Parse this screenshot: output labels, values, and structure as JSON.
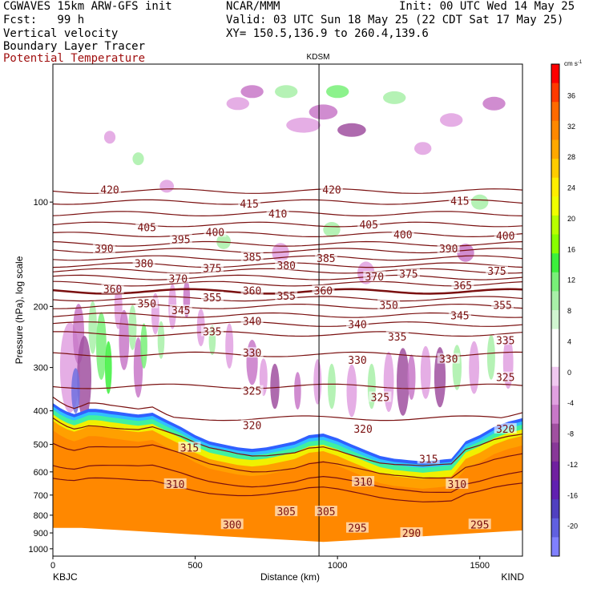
{
  "header": {
    "model": "CGWAVES 15km ARW-GFS init",
    "fcst": "Fcst:   99 h",
    "field1": "Vertical velocity",
    "field2": "Boundary Layer Tracer",
    "field3": "Potential Temperature",
    "center": "NCAR/MMM",
    "init": "Init: 00 UTC Wed 14 May 25",
    "valid": "Valid: 03 UTC Sun 18 May 25 (22 CDT Sat 17 May 25)",
    "xy": "XY= 150.5,136.9 to 260.4,139.6"
  },
  "colors": {
    "contour": "#7a1010",
    "terrain": "#ffffff",
    "header_red": "#a01010"
  },
  "chart_data": {
    "type": "heatmap",
    "xlabel": "Distance (km)",
    "ylabel": "Pressure (hPa), log scale",
    "xlim": [
      0,
      1650
    ],
    "ylim": [
      1050,
      40
    ],
    "x_ticks": [
      0,
      500,
      1000,
      1500
    ],
    "y_ticks": [
      100,
      200,
      300,
      400,
      500,
      600,
      700,
      800,
      900,
      1000
    ],
    "left_station": "KBJC",
    "right_station": "KIND",
    "marker": {
      "label": "KDSM",
      "x": 935
    },
    "colorbar": {
      "unit": "cm s",
      "unit_exp": "-1",
      "tick_labels": [
        36,
        32,
        28,
        24,
        20,
        16,
        12,
        8,
        4,
        0,
        -4,
        -8,
        -12,
        -16,
        -20
      ],
      "colors": [
        "#ff0000",
        "#ff3a00",
        "#ff6a00",
        "#ff8800",
        "#ffa800",
        "#ffcc00",
        "#ffee00",
        "#f0ff00",
        "#b8ff00",
        "#88ff00",
        "#3cf03c",
        "#78f078",
        "#a8f0a8",
        "#d0f5d0",
        "#ffffff",
        "#ffffff",
        "#f0c8f0",
        "#e0a0e0",
        "#c878c8",
        "#a050a0",
        "#883898",
        "#7020a0",
        "#6020b0",
        "#5040c0",
        "#6060e0",
        "#8080ff"
      ]
    },
    "series": [
      {
        "name": "Potential Temperature",
        "values": [
          420,
          415,
          410,
          405,
          400,
          395,
          390,
          385,
          380,
          375,
          370,
          365,
          360,
          355,
          350,
          345,
          340,
          335,
          330,
          325,
          320,
          315,
          310,
          305,
          300,
          295,
          290
        ]
      }
    ],
    "isentropes": [
      {
        "theta": 420,
        "p": 93
      },
      {
        "theta": 415,
        "p": 100
      },
      {
        "theta": 410,
        "p": 108
      },
      {
        "theta": 405,
        "p": 116
      },
      {
        "theta": 400,
        "p": 124
      },
      {
        "theta": 395,
        "p": 132
      },
      {
        "theta": 390,
        "p": 138
      },
      {
        "theta": 385,
        "p": 145
      },
      {
        "theta": 380,
        "p": 152
      },
      {
        "theta": 375,
        "p": 158
      },
      {
        "theta": 370,
        "p": 165
      },
      {
        "theta": 365,
        "p": 172
      },
      {
        "theta": 360,
        "p": 181
      },
      {
        "theta": 355,
        "p": 190
      },
      {
        "theta": 350,
        "p": 200
      },
      {
        "theta": 345,
        "p": 212
      },
      {
        "theta": 340,
        "p": 225
      },
      {
        "theta": 335,
        "p": 240
      },
      {
        "theta": 330,
        "p": 275
      },
      {
        "theta": 325,
        "p": 340
      },
      {
        "theta": 320,
        "p": 420
      }
    ],
    "isentrope_labels": [
      {
        "t": "420",
        "x": 200,
        "p": 92
      },
      {
        "t": "405",
        "x": 330,
        "p": 118
      },
      {
        "t": "395",
        "x": 450,
        "p": 128
      },
      {
        "t": "400",
        "x": 570,
        "p": 122
      },
      {
        "t": "415",
        "x": 690,
        "p": 101
      },
      {
        "t": "410",
        "x": 790,
        "p": 108
      },
      {
        "t": "420",
        "x": 980,
        "p": 92
      },
      {
        "t": "405",
        "x": 1110,
        "p": 116
      },
      {
        "t": "400",
        "x": 1230,
        "p": 124
      },
      {
        "t": "415",
        "x": 1430,
        "p": 99
      },
      {
        "t": "390",
        "x": 1390,
        "p": 136
      },
      {
        "t": "400",
        "x": 1590,
        "p": 125
      },
      {
        "t": "390",
        "x": 180,
        "p": 136
      },
      {
        "t": "380",
        "x": 320,
        "p": 150
      },
      {
        "t": "375",
        "x": 560,
        "p": 155
      },
      {
        "t": "385",
        "x": 700,
        "p": 144
      },
      {
        "t": "380",
        "x": 820,
        "p": 152
      },
      {
        "t": "385",
        "x": 960,
        "p": 145
      },
      {
        "t": "370",
        "x": 440,
        "p": 166
      },
      {
        "t": "360",
        "x": 210,
        "p": 178
      },
      {
        "t": "370",
        "x": 1130,
        "p": 164
      },
      {
        "t": "375",
        "x": 1250,
        "p": 161
      },
      {
        "t": "375",
        "x": 1560,
        "p": 158
      },
      {
        "t": "360",
        "x": 950,
        "p": 180
      },
      {
        "t": "365",
        "x": 1440,
        "p": 174
      },
      {
        "t": "360",
        "x": 700,
        "p": 180
      },
      {
        "t": "355",
        "x": 560,
        "p": 188
      },
      {
        "t": "355",
        "x": 820,
        "p": 186
      },
      {
        "t": "350",
        "x": 330,
        "p": 196
      },
      {
        "t": "345",
        "x": 450,
        "p": 205
      },
      {
        "t": "340",
        "x": 700,
        "p": 220
      },
      {
        "t": "350",
        "x": 1180,
        "p": 198
      },
      {
        "t": "355",
        "x": 1580,
        "p": 198
      },
      {
        "t": "345",
        "x": 1430,
        "p": 212
      },
      {
        "t": "340",
        "x": 1070,
        "p": 225
      },
      {
        "t": "335",
        "x": 560,
        "p": 236
      },
      {
        "t": "335",
        "x": 1210,
        "p": 244
      },
      {
        "t": "335",
        "x": 1590,
        "p": 250
      },
      {
        "t": "330",
        "x": 700,
        "p": 272
      },
      {
        "t": "330",
        "x": 1070,
        "p": 285
      },
      {
        "t": "330",
        "x": 1390,
        "p": 283
      },
      {
        "t": "325",
        "x": 700,
        "p": 350
      },
      {
        "t": "325",
        "x": 1150,
        "p": 365
      },
      {
        "t": "325",
        "x": 1590,
        "p": 320
      },
      {
        "t": "320",
        "x": 700,
        "p": 440
      },
      {
        "t": "320",
        "x": 1090,
        "p": 450
      },
      {
        "t": "320",
        "x": 1590,
        "p": 450
      },
      {
        "t": "315",
        "x": 480,
        "p": 510
      },
      {
        "t": "315",
        "x": 1320,
        "p": 550
      },
      {
        "t": "310",
        "x": 430,
        "p": 650
      },
      {
        "t": "310",
        "x": 1090,
        "p": 640
      },
      {
        "t": "310",
        "x": 1420,
        "p": 650
      },
      {
        "t": "305",
        "x": 820,
        "p": 780
      },
      {
        "t": "305",
        "x": 960,
        "p": 780
      },
      {
        "t": "300",
        "x": 630,
        "p": 850
      },
      {
        "t": "295",
        "x": 1070,
        "p": 870
      },
      {
        "t": "295",
        "x": 1500,
        "p": 850
      },
      {
        "t": "290",
        "x": 1260,
        "p": 900
      }
    ],
    "terrain_p": [
      [
        0,
        380
      ],
      [
        40,
        400
      ],
      [
        80,
        410
      ],
      [
        120,
        395
      ],
      [
        160,
        395
      ],
      [
        200,
        400
      ],
      [
        250,
        405
      ],
      [
        300,
        410
      ],
      [
        350,
        405
      ],
      [
        400,
        425
      ],
      [
        450,
        445
      ],
      [
        500,
        470
      ],
      [
        550,
        490
      ],
      [
        600,
        500
      ],
      [
        650,
        510
      ],
      [
        700,
        515
      ],
      [
        750,
        510
      ],
      [
        800,
        500
      ],
      [
        850,
        490
      ],
      [
        900,
        470
      ],
      [
        950,
        465
      ],
      [
        1000,
        480
      ],
      [
        1050,
        500
      ],
      [
        1100,
        520
      ],
      [
        1150,
        540
      ],
      [
        1200,
        550
      ],
      [
        1250,
        555
      ],
      [
        1300,
        560
      ],
      [
        1350,
        555
      ],
      [
        1400,
        550
      ],
      [
        1450,
        490
      ],
      [
        1500,
        470
      ],
      [
        1550,
        445
      ],
      [
        1600,
        430
      ],
      [
        1650,
        420
      ]
    ],
    "surface_p": [
      [
        0,
        870
      ],
      [
        100,
        870
      ],
      [
        200,
        880
      ],
      [
        300,
        890
      ],
      [
        400,
        900
      ],
      [
        500,
        910
      ],
      [
        600,
        920
      ],
      [
        700,
        930
      ],
      [
        800,
        940
      ],
      [
        900,
        950
      ],
      [
        950,
        955
      ],
      [
        1000,
        950
      ],
      [
        1100,
        940
      ],
      [
        1200,
        930
      ],
      [
        1300,
        920
      ],
      [
        1400,
        910
      ],
      [
        1500,
        900
      ],
      [
        1600,
        890
      ],
      [
        1650,
        885
      ]
    ]
  }
}
